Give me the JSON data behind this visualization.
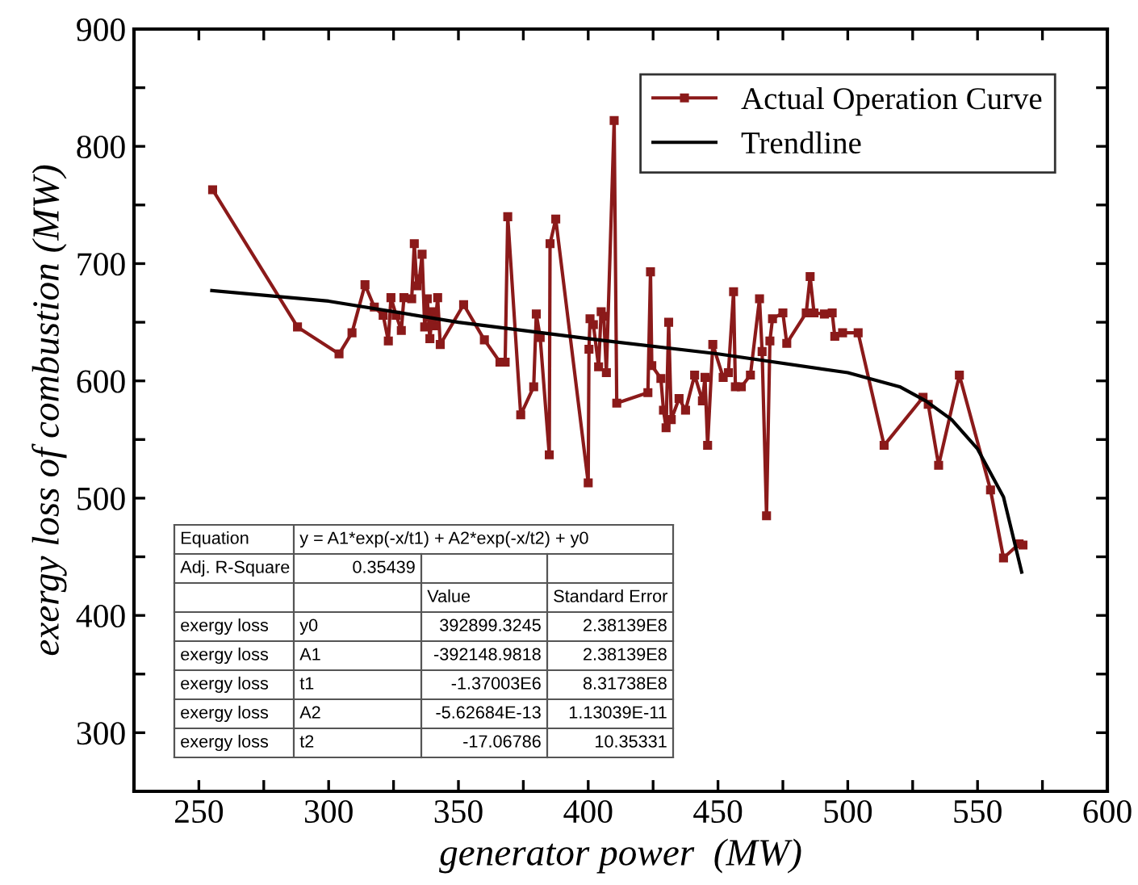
{
  "chart_data": {
    "type": "line",
    "xlabel": "generator power  (MW)",
    "ylabel": "exergy loss of combustion (MW)",
    "xlim": [
      225,
      600
    ],
    "ylim": [
      250,
      900
    ],
    "xticks": [
      {
        "value": 225,
        "label": null
      },
      250,
      {
        "value": 275,
        "label": null
      },
      300,
      {
        "value": 325,
        "label": null
      },
      350,
      {
        "value": 375,
        "label": null
      },
      400,
      {
        "value": 425,
        "label": null
      },
      450,
      {
        "value": 475,
        "label": null
      },
      500,
      {
        "value": 525,
        "label": null
      },
      550,
      {
        "value": 575,
        "label": null
      },
      600
    ],
    "yticks": [
      {
        "value": 250,
        "label": null
      },
      300,
      {
        "value": 350,
        "label": null
      },
      400,
      {
        "value": 450,
        "label": null
      },
      500,
      {
        "value": 550,
        "label": null
      },
      600,
      {
        "value": 650,
        "label": null
      },
      700,
      {
        "value": 750,
        "label": null
      },
      800,
      {
        "value": 850,
        "label": null
      },
      900
    ],
    "grid": false,
    "legend": "top right",
    "series": [
      {
        "name": "Actual Operation Curve",
        "color": "#8b1a1a",
        "marker": "square",
        "x": [
          255.3,
          288,
          304,
          309,
          314,
          317.6,
          321,
          323,
          324,
          326,
          328,
          329,
          332,
          333,
          334,
          335,
          336,
          337,
          338,
          339,
          340,
          341,
          342,
          343,
          352,
          360,
          366,
          368,
          369,
          374,
          379,
          380,
          381.5,
          385,
          385.3,
          387.5,
          400,
          400.3,
          400.7,
          402,
          404,
          405,
          406,
          407,
          410,
          411,
          423,
          424,
          424.5,
          428,
          429,
          430,
          431,
          432,
          435,
          437.5,
          441,
          444,
          445,
          446,
          448,
          452,
          454,
          456,
          456.7,
          459,
          462.5,
          466,
          467,
          468.7,
          470,
          471,
          475,
          476.5,
          484,
          485.5,
          487,
          491,
          494,
          495,
          498,
          504,
          514,
          529,
          531,
          535,
          543,
          555,
          560,
          566,
          567.5
        ],
        "values": [
          763,
          646,
          623,
          641,
          682,
          663,
          656,
          634,
          671,
          656,
          643,
          671,
          670,
          717,
          681,
          687,
          708,
          646,
          670,
          636,
          659,
          647,
          671,
          631,
          665,
          635,
          616,
          616,
          740,
          571,
          595,
          657,
          637,
          537,
          717,
          738,
          513,
          627,
          653,
          648,
          612,
          659,
          655,
          607,
          822,
          581,
          590,
          693,
          613,
          602,
          575,
          560,
          650,
          567,
          585,
          575,
          605,
          583,
          603,
          545,
          631,
          603,
          607,
          676,
          595,
          595,
          605,
          670,
          625,
          485,
          634,
          653,
          658,
          632,
          658,
          689,
          658,
          657,
          658,
          638,
          641,
          641,
          545,
          586,
          580,
          528,
          605,
          507,
          449,
          461,
          460
        ]
      },
      {
        "name": "Trendline",
        "color": "#000000",
        "marker": "none",
        "x": [
          255,
          300,
          350,
          400,
          450,
          500,
          520,
          530,
          540,
          550,
          560,
          567
        ],
        "values": [
          677,
          668,
          650,
          636,
          623,
          607,
          595,
          583,
          567,
          542,
          501,
          437
        ]
      }
    ],
    "annotations": [
      "Equation",
      "y = A1*exp(-x/t1) + A2*exp(-x/t2) + y0",
      "Adj. R-Square",
      "0.35439",
      "Value",
      "Standard Error",
      "exergy loss",
      "y0",
      "392899.3245",
      "2.38139E8",
      "exergy loss",
      "A1",
      "-392148.9818",
      "2.38139E8",
      "exergy loss",
      "t1",
      "-1.37003E6",
      "8.31738E8",
      "exergy loss",
      "A2",
      "-5.62684E-13",
      "1.13039E-11",
      "exergy loss",
      "t2",
      "-17.06786",
      "10.35331"
    ]
  }
}
